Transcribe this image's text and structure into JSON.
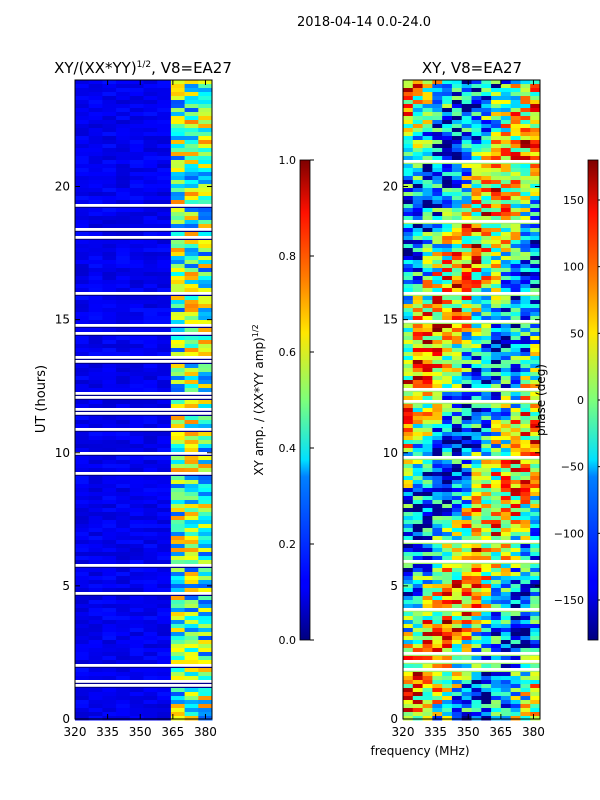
{
  "figure": {
    "suptitle": "2018-04-14 0.0-24.0",
    "shared_xlabel": "frequency (MHz)"
  },
  "chart_data": [
    {
      "type": "heatmap",
      "title_main": "XY/(XX*YY)",
      "title_sup": "1/2",
      "title_tail": ", V8=EA27",
      "ylabel": "UT (hours)",
      "xlim": [
        320,
        383
      ],
      "ylim": [
        0,
        24
      ],
      "xticks": [
        "320",
        "335",
        "350",
        "365",
        "380"
      ],
      "yticks": [
        "0",
        "5",
        "10",
        "15",
        "20"
      ],
      "colorbar": {
        "label_main": "XY amp. / (XX*YY amp)",
        "label_sup": "1/2",
        "range": [
          0.0,
          1.0
        ],
        "ticks": [
          "0.0",
          "0.2",
          "0.4",
          "0.6",
          "0.8",
          "1.0"
        ],
        "colormap": "jet"
      }
    },
    {
      "type": "heatmap",
      "title": "XY, V8=EA27",
      "xlim": [
        320,
        383
      ],
      "ylim": [
        0,
        24
      ],
      "xticks": [
        "320",
        "335",
        "350",
        "365",
        "380"
      ],
      "yticks": [
        "0",
        "5",
        "10",
        "15",
        "20"
      ],
      "colorbar": {
        "label": "phase (deg)",
        "range": [
          -180,
          180
        ],
        "ticks": [
          "−150",
          "−100",
          "−50",
          "0",
          "50",
          "100",
          "150"
        ],
        "colormap": "jet"
      }
    }
  ]
}
